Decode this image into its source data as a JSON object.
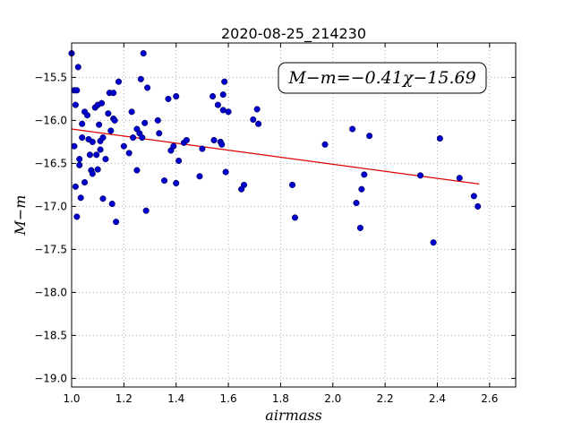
{
  "chart_data": {
    "type": "scatter",
    "title": "2020-08-25_214230",
    "xlabel": "airmass",
    "ylabel": "M−m",
    "xlim": [
      1.0,
      2.7
    ],
    "ylim": [
      -19.1,
      -15.1
    ],
    "y_inverted": false,
    "grid": true,
    "x_ticks": [
      "1.0",
      "1.2",
      "1.4",
      "1.6",
      "1.8",
      "2.0",
      "2.2",
      "2.4",
      "2.6"
    ],
    "y_ticks": [
      "−15.5",
      "−16.0",
      "−16.5",
      "−17.0",
      "−17.5",
      "−18.0",
      "−18.5",
      "−19.0"
    ],
    "annotation": "M−m=−0.41χ−15.69",
    "colors": {
      "points": "#0000cc",
      "fit": "#dd0000",
      "grid": "#999999"
    },
    "fit_line": {
      "slope": -0.41,
      "intercept": -15.69,
      "x_range": [
        1.0,
        2.56
      ]
    },
    "points": [
      [
        1.0,
        -15.22
      ],
      [
        1.01,
        -15.65
      ],
      [
        1.015,
        -15.82
      ],
      [
        1.02,
        -15.65
      ],
      [
        1.025,
        -15.38
      ],
      [
        1.01,
        -16.3
      ],
      [
        1.015,
        -16.77
      ],
      [
        1.02,
        -17.12
      ],
      [
        1.03,
        -16.45
      ],
      [
        1.03,
        -16.52
      ],
      [
        1.035,
        -16.9
      ],
      [
        1.04,
        -16.2
      ],
      [
        1.04,
        -16.04
      ],
      [
        1.05,
        -16.72
      ],
      [
        1.05,
        -15.9
      ],
      [
        1.06,
        -15.94
      ],
      [
        1.065,
        -16.22
      ],
      [
        1.07,
        -16.4
      ],
      [
        1.075,
        -16.58
      ],
      [
        1.08,
        -16.25
      ],
      [
        1.08,
        -16.62
      ],
      [
        1.09,
        -15.85
      ],
      [
        1.095,
        -16.4
      ],
      [
        1.1,
        -16.57
      ],
      [
        1.1,
        -15.82
      ],
      [
        1.105,
        -16.05
      ],
      [
        1.11,
        -16.24
      ],
      [
        1.11,
        -16.34
      ],
      [
        1.115,
        -15.8
      ],
      [
        1.12,
        -16.2
      ],
      [
        1.12,
        -16.91
      ],
      [
        1.13,
        -16.45
      ],
      [
        1.14,
        -15.92
      ],
      [
        1.145,
        -15.68
      ],
      [
        1.15,
        -16.12
      ],
      [
        1.155,
        -16.97
      ],
      [
        1.16,
        -15.68
      ],
      [
        1.16,
        -15.98
      ],
      [
        1.165,
        -16.0
      ],
      [
        1.17,
        -17.18
      ],
      [
        1.18,
        -15.55
      ],
      [
        1.2,
        -16.3
      ],
      [
        1.22,
        -16.38
      ],
      [
        1.23,
        -15.9
      ],
      [
        1.235,
        -16.2
      ],
      [
        1.25,
        -16.1
      ],
      [
        1.25,
        -16.58
      ],
      [
        1.26,
        -16.15
      ],
      [
        1.265,
        -15.52
      ],
      [
        1.27,
        -16.2
      ],
      [
        1.275,
        -15.22
      ],
      [
        1.28,
        -16.03
      ],
      [
        1.285,
        -17.05
      ],
      [
        1.29,
        -15.62
      ],
      [
        1.33,
        -16.0
      ],
      [
        1.335,
        -16.15
      ],
      [
        1.355,
        -16.7
      ],
      [
        1.37,
        -15.75
      ],
      [
        1.38,
        -16.35
      ],
      [
        1.39,
        -16.3
      ],
      [
        1.4,
        -15.72
      ],
      [
        1.4,
        -16.73
      ],
      [
        1.41,
        -16.47
      ],
      [
        1.43,
        -16.26
      ],
      [
        1.44,
        -16.23
      ],
      [
        1.49,
        -16.65
      ],
      [
        1.5,
        -16.33
      ],
      [
        1.54,
        -15.72
      ],
      [
        1.545,
        -16.23
      ],
      [
        1.56,
        -15.82
      ],
      [
        1.57,
        -16.25
      ],
      [
        1.575,
        -16.28
      ],
      [
        1.58,
        -15.7
      ],
      [
        1.58,
        -15.88
      ],
      [
        1.585,
        -15.55
      ],
      [
        1.59,
        -16.6
      ],
      [
        1.6,
        -15.9
      ],
      [
        1.65,
        -16.8
      ],
      [
        1.66,
        -16.75
      ],
      [
        1.695,
        -15.99
      ],
      [
        1.71,
        -15.87
      ],
      [
        1.715,
        -16.04
      ],
      [
        1.845,
        -16.75
      ],
      [
        1.855,
        -17.13
      ],
      [
        1.97,
        -16.28
      ],
      [
        2.075,
        -16.1
      ],
      [
        2.09,
        -16.96
      ],
      [
        2.105,
        -17.25
      ],
      [
        2.11,
        -16.8
      ],
      [
        2.12,
        -16.63
      ],
      [
        2.14,
        -16.18
      ],
      [
        2.335,
        -16.64
      ],
      [
        2.385,
        -17.42
      ],
      [
        2.41,
        -16.21
      ],
      [
        2.485,
        -16.67
      ],
      [
        2.54,
        -16.88
      ],
      [
        2.555,
        -17.0
      ]
    ]
  }
}
